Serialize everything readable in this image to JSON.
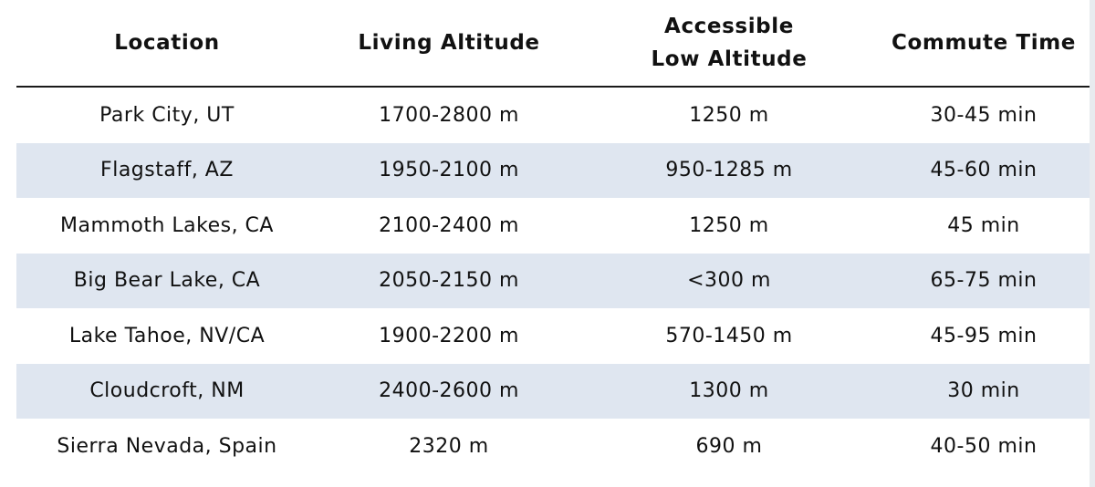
{
  "table": {
    "columns": [
      "Location",
      "Living Altitude",
      "Accessible\nLow Altitude",
      "Commute Time"
    ],
    "rows": [
      [
        "Park City, UT",
        "1700-2800 m",
        "1250 m",
        "30-45 min"
      ],
      [
        "Flagstaff, AZ",
        "1950-2100 m",
        "950-1285 m",
        "45-60 min"
      ],
      [
        "Mammoth Lakes, CA",
        "2100-2400 m",
        "1250 m",
        "45 min"
      ],
      [
        "Big Bear Lake, CA",
        "2050-2150 m",
        "<300 m",
        "65-75 min"
      ],
      [
        "Lake Tahoe, NV/CA",
        "1900-2200 m",
        "570-1450 m",
        "45-95 min"
      ],
      [
        "Cloudcroft, NM",
        "2400-2600 m",
        "1300 m",
        "30 min"
      ],
      [
        "Sierra Nevada, Spain",
        "2320 m",
        "690 m",
        "40-50 min"
      ]
    ]
  },
  "colors": {
    "shaded_row": "#dfe6f0",
    "rule": "#1a1a1a",
    "text": "#111111"
  }
}
